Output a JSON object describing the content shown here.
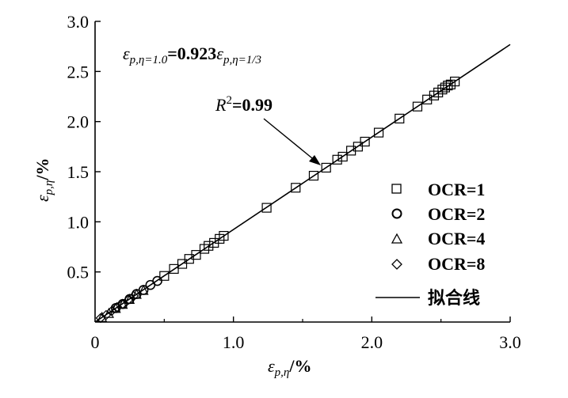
{
  "chart_data": {
    "type": "scatter",
    "title": "",
    "xlabel": {
      "symbol": "ε",
      "sub": "p,η",
      "unit": "/%"
    },
    "ylabel": {
      "symbol": "ε",
      "sub": "p,η",
      "unit": "/%"
    },
    "xlim": [
      0,
      3.0
    ],
    "ylim": [
      0,
      3.0
    ],
    "x_ticks": [
      "0",
      "1.0",
      "2.0",
      "3.0"
    ],
    "y_ticks": [
      "0.5",
      "1.0",
      "1.5",
      "2.0",
      "2.5",
      "3.0"
    ],
    "grid": false,
    "legend_position": "right",
    "fit_line": {
      "name": "拟合线",
      "slope": 0.923,
      "intercept": 0,
      "x_range": [
        0,
        3.0
      ]
    },
    "annotations": {
      "equation": {
        "lhs_sym": "ε",
        "lhs_sub": "p,η=1.0",
        "eq": "=0.923",
        "rhs_sym": "ε",
        "rhs_sub": "p,η=1/3"
      },
      "r2": {
        "sym": "R",
        "sup": "2",
        "val": "=0.99"
      }
    },
    "series": [
      {
        "name": "OCR=1",
        "marker": "square",
        "x": [
          0.5,
          0.57,
          0.63,
          0.68,
          0.73,
          0.79,
          0.82,
          0.86,
          0.9,
          0.93,
          1.24,
          1.45,
          1.58,
          1.67,
          1.75,
          1.79,
          1.85,
          1.9,
          1.95,
          2.05,
          2.2,
          2.33,
          2.4,
          2.45,
          2.48,
          2.51,
          2.53,
          2.55,
          2.57,
          2.6
        ],
        "y": [
          0.46,
          0.53,
          0.58,
          0.63,
          0.67,
          0.73,
          0.76,
          0.79,
          0.83,
          0.86,
          1.14,
          1.34,
          1.46,
          1.54,
          1.62,
          1.65,
          1.71,
          1.75,
          1.8,
          1.89,
          2.03,
          2.15,
          2.22,
          2.26,
          2.29,
          2.32,
          2.34,
          2.36,
          2.37,
          2.4
        ]
      },
      {
        "name": "OCR=2",
        "marker": "circle",
        "x": [
          0.15,
          0.2,
          0.25,
          0.3,
          0.35,
          0.4,
          0.45
        ],
        "y": [
          0.14,
          0.18,
          0.23,
          0.28,
          0.32,
          0.37,
          0.41
        ]
      },
      {
        "name": "OCR=4",
        "marker": "triangle",
        "x": [
          0.05,
          0.1,
          0.15,
          0.2,
          0.25,
          0.3,
          0.35
        ],
        "y": [
          0.05,
          0.09,
          0.14,
          0.18,
          0.23,
          0.28,
          0.32
        ]
      },
      {
        "name": "OCR=8",
        "marker": "diamond",
        "x": [
          0.04,
          0.08,
          0.12,
          0.16,
          0.2,
          0.24,
          0.28
        ],
        "y": [
          0.04,
          0.07,
          0.11,
          0.15,
          0.18,
          0.22,
          0.26
        ]
      }
    ]
  }
}
